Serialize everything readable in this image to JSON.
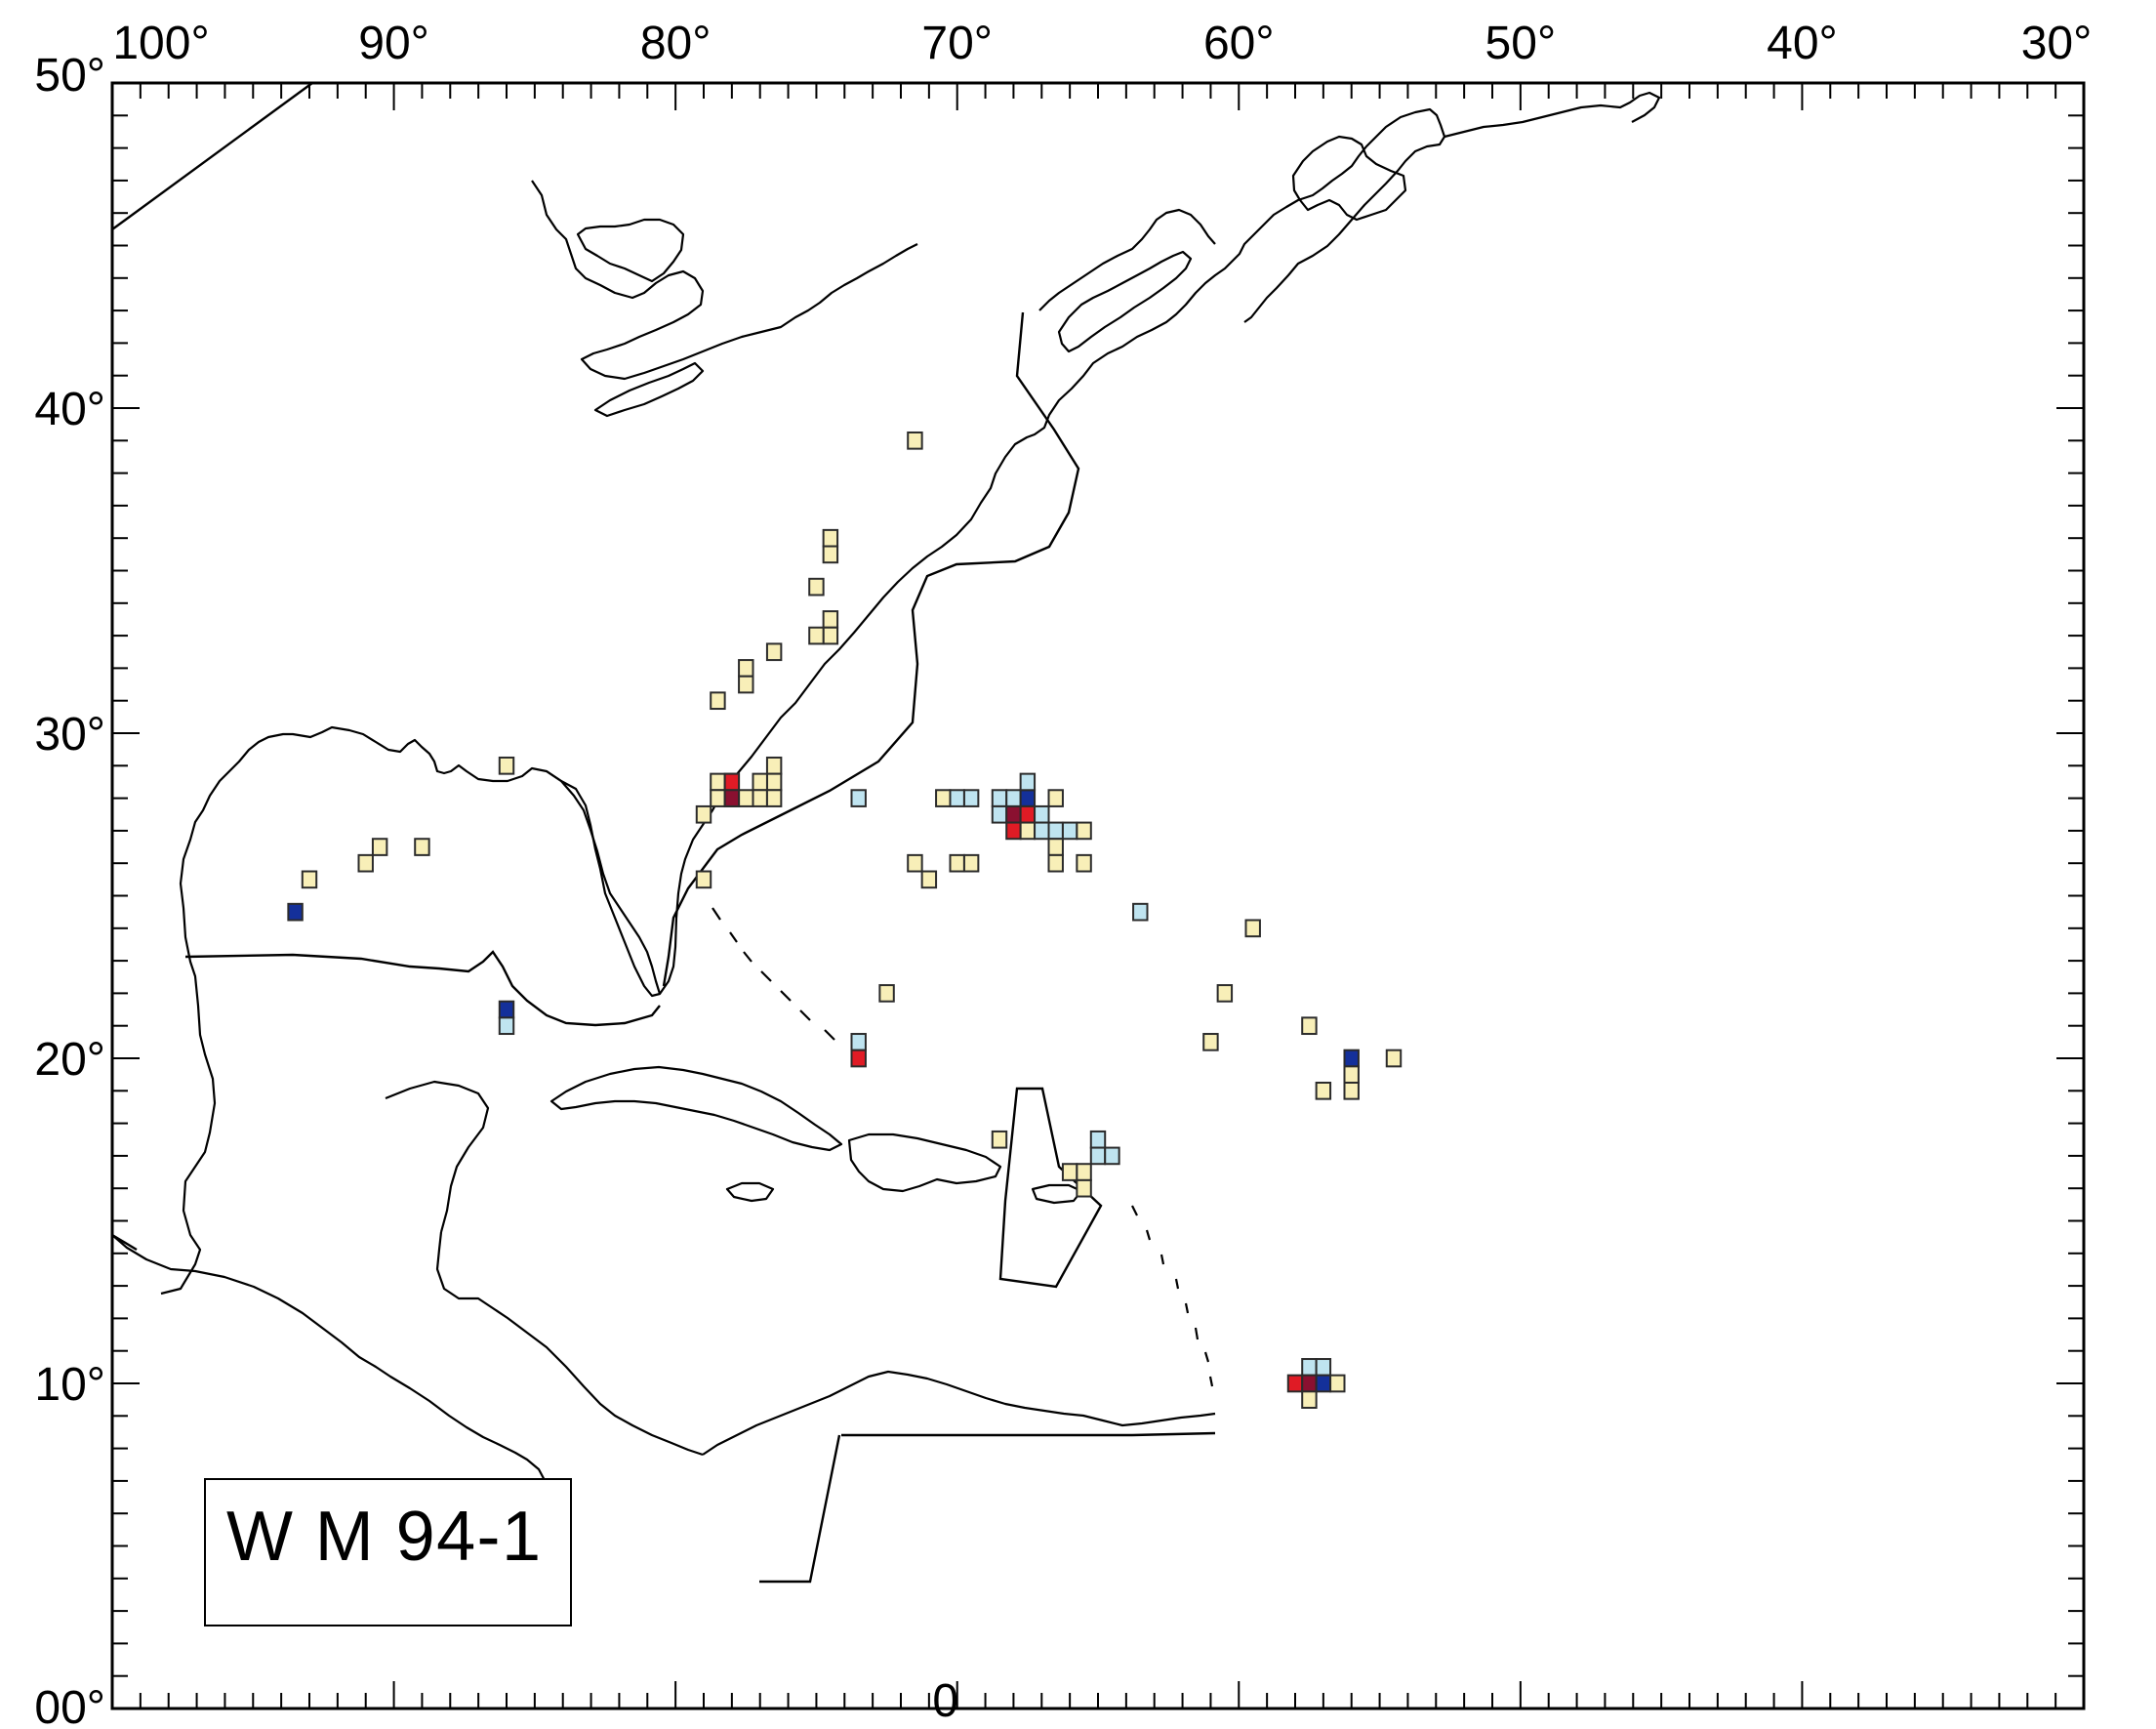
{
  "map": {
    "longitude_labels": [
      {
        "lon": -100,
        "text": "100°"
      },
      {
        "lon": -90,
        "text": "90°"
      },
      {
        "lon": -80,
        "text": "80°"
      },
      {
        "lon": -70,
        "text": "70°"
      },
      {
        "lon": -60,
        "text": "60°"
      },
      {
        "lon": -50,
        "text": "50°"
      },
      {
        "lon": -40,
        "text": "40°"
      },
      {
        "lon": -30,
        "text": "30°"
      }
    ],
    "latitude_labels": [
      {
        "lat": 50,
        "text": "50°"
      },
      {
        "lat": 40,
        "text": "40°"
      },
      {
        "lat": 30,
        "text": "30°"
      },
      {
        "lat": 20,
        "text": "20°"
      },
      {
        "lat": 10,
        "text": "10°"
      },
      {
        "lat": 0,
        "text": "00°"
      }
    ],
    "bottom_label": {
      "lon": -70,
      "text": "0"
    },
    "extent": {
      "lon_min": -100,
      "lon_max": -30,
      "lat_min": 0,
      "lat_max": 50
    },
    "legend_label": "W M 94-1",
    "colors": {
      "cream": "#f8efb8",
      "light_blue": "#bfe4f0",
      "red": "#e01b25",
      "navy": "#14309a",
      "dark_red": "#8a1030"
    }
  },
  "chart_data": {
    "type": "heatmap",
    "title": "W M 94-1",
    "xlabel": "",
    "ylabel": "",
    "xlim": [
      -100,
      -30
    ],
    "ylim": [
      0,
      50
    ],
    "cells": [
      {
        "lon": -71.5,
        "lat": 39,
        "c": "cream"
      },
      {
        "lon": -74.5,
        "lat": 35.5,
        "c": "cream"
      },
      {
        "lon": -74.5,
        "lat": 36,
        "c": "cream"
      },
      {
        "lon": -75,
        "lat": 34.5,
        "c": "cream"
      },
      {
        "lon": -74.5,
        "lat": 33.5,
        "c": "cream"
      },
      {
        "lon": -74.5,
        "lat": 33,
        "c": "cream"
      },
      {
        "lon": -75,
        "lat": 33,
        "c": "cream"
      },
      {
        "lon": -76.5,
        "lat": 32.5,
        "c": "cream"
      },
      {
        "lon": -77.5,
        "lat": 32,
        "c": "cream"
      },
      {
        "lon": -77.5,
        "lat": 31.5,
        "c": "cream"
      },
      {
        "lon": -78.5,
        "lat": 31,
        "c": "cream"
      },
      {
        "lon": -76.5,
        "lat": 29,
        "c": "cream"
      },
      {
        "lon": -76.5,
        "lat": 28.5,
        "c": "cream"
      },
      {
        "lon": -77,
        "lat": 28.5,
        "c": "cream"
      },
      {
        "lon": -78,
        "lat": 28.5,
        "c": "cream"
      },
      {
        "lon": -78.5,
        "lat": 28.5,
        "c": "cream"
      },
      {
        "lon": -78,
        "lat": 28,
        "c": "cream"
      },
      {
        "lon": -77.5,
        "lat": 28,
        "c": "cream"
      },
      {
        "lon": -77,
        "lat": 28,
        "c": "cream"
      },
      {
        "lon": -76.5,
        "lat": 28,
        "c": "cream"
      },
      {
        "lon": -78.5,
        "lat": 28,
        "c": "cream"
      },
      {
        "lon": -78,
        "lat": 28.5,
        "c": "red"
      },
      {
        "lon": -78,
        "lat": 28,
        "c": "dark_red"
      },
      {
        "lon": -79,
        "lat": 27.5,
        "c": "cream"
      },
      {
        "lon": -79,
        "lat": 25.5,
        "c": "cream"
      },
      {
        "lon": -86,
        "lat": 29,
        "c": "cream"
      },
      {
        "lon": -93,
        "lat": 25.5,
        "c": "cream"
      },
      {
        "lon": -91,
        "lat": 26,
        "c": "cream"
      },
      {
        "lon": -90.5,
        "lat": 26.5,
        "c": "cream"
      },
      {
        "lon": -89,
        "lat": 26.5,
        "c": "cream"
      },
      {
        "lon": -93.5,
        "lat": 24.5,
        "c": "navy"
      },
      {
        "lon": -86,
        "lat": 21.5,
        "c": "navy"
      },
      {
        "lon": -86,
        "lat": 21,
        "c": "light_blue"
      },
      {
        "lon": -72.5,
        "lat": 22,
        "c": "cream"
      },
      {
        "lon": -73.5,
        "lat": 20.5,
        "c": "light_blue"
      },
      {
        "lon": -73.5,
        "lat": 20,
        "c": "red"
      },
      {
        "lon": -73.5,
        "lat": 28,
        "c": "light_blue"
      },
      {
        "lon": -70.5,
        "lat": 28,
        "c": "cream"
      },
      {
        "lon": -70,
        "lat": 28,
        "c": "light_blue"
      },
      {
        "lon": -69.5,
        "lat": 28,
        "c": "light_blue"
      },
      {
        "lon": -68.5,
        "lat": 28,
        "c": "light_blue"
      },
      {
        "lon": -68,
        "lat": 28,
        "c": "light_blue"
      },
      {
        "lon": -67.5,
        "lat": 28,
        "c": "navy"
      },
      {
        "lon": -66.5,
        "lat": 28,
        "c": "cream"
      },
      {
        "lon": -67.5,
        "lat": 28.5,
        "c": "light_blue"
      },
      {
        "lon": -68.5,
        "lat": 27.5,
        "c": "light_blue"
      },
      {
        "lon": -68,
        "lat": 27.5,
        "c": "dark_red"
      },
      {
        "lon": -67.5,
        "lat": 27.5,
        "c": "red"
      },
      {
        "lon": -67,
        "lat": 27.5,
        "c": "light_blue"
      },
      {
        "lon": -68,
        "lat": 27,
        "c": "red"
      },
      {
        "lon": -67.5,
        "lat": 27,
        "c": "cream"
      },
      {
        "lon": -67,
        "lat": 27,
        "c": "light_blue"
      },
      {
        "lon": -66.5,
        "lat": 27,
        "c": "light_blue"
      },
      {
        "lon": -66,
        "lat": 27,
        "c": "light_blue"
      },
      {
        "lon": -65.5,
        "lat": 27,
        "c": "cream"
      },
      {
        "lon": -66.5,
        "lat": 26.5,
        "c": "cream"
      },
      {
        "lon": -66.5,
        "lat": 26,
        "c": "cream"
      },
      {
        "lon": -65.5,
        "lat": 26,
        "c": "cream"
      },
      {
        "lon": -71.5,
        "lat": 26,
        "c": "cream"
      },
      {
        "lon": -71,
        "lat": 25.5,
        "c": "cream"
      },
      {
        "lon": -70,
        "lat": 26,
        "c": "cream"
      },
      {
        "lon": -69.5,
        "lat": 26,
        "c": "cream"
      },
      {
        "lon": -63.5,
        "lat": 24.5,
        "c": "light_blue"
      },
      {
        "lon": -59.5,
        "lat": 24,
        "c": "cream"
      },
      {
        "lon": -60.5,
        "lat": 22,
        "c": "cream"
      },
      {
        "lon": -61,
        "lat": 20.5,
        "c": "cream"
      },
      {
        "lon": -57.5,
        "lat": 21,
        "c": "cream"
      },
      {
        "lon": -56,
        "lat": 20,
        "c": "navy"
      },
      {
        "lon": -54.5,
        "lat": 20,
        "c": "cream"
      },
      {
        "lon": -56,
        "lat": 19.5,
        "c": "cream"
      },
      {
        "lon": -57,
        "lat": 19,
        "c": "cream"
      },
      {
        "lon": -56,
        "lat": 19,
        "c": "cream"
      },
      {
        "lon": -68.5,
        "lat": 17.5,
        "c": "cream"
      },
      {
        "lon": -65,
        "lat": 17.5,
        "c": "light_blue"
      },
      {
        "lon": -65,
        "lat": 17,
        "c": "light_blue"
      },
      {
        "lon": -64.5,
        "lat": 17,
        "c": "light_blue"
      },
      {
        "lon": -66,
        "lat": 16.5,
        "c": "cream"
      },
      {
        "lon": -65.5,
        "lat": 16.5,
        "c": "cream"
      },
      {
        "lon": -65.5,
        "lat": 16,
        "c": "cream"
      },
      {
        "lon": -57.5,
        "lat": 10.5,
        "c": "light_blue"
      },
      {
        "lon": -57,
        "lat": 10.5,
        "c": "light_blue"
      },
      {
        "lon": -58,
        "lat": 10,
        "c": "red"
      },
      {
        "lon": -57.5,
        "lat": 10,
        "c": "dark_red"
      },
      {
        "lon": -57,
        "lat": 10,
        "c": "navy"
      },
      {
        "lon": -56.5,
        "lat": 10,
        "c": "cream"
      },
      {
        "lon": -57.5,
        "lat": 9.5,
        "c": "cream"
      }
    ]
  }
}
